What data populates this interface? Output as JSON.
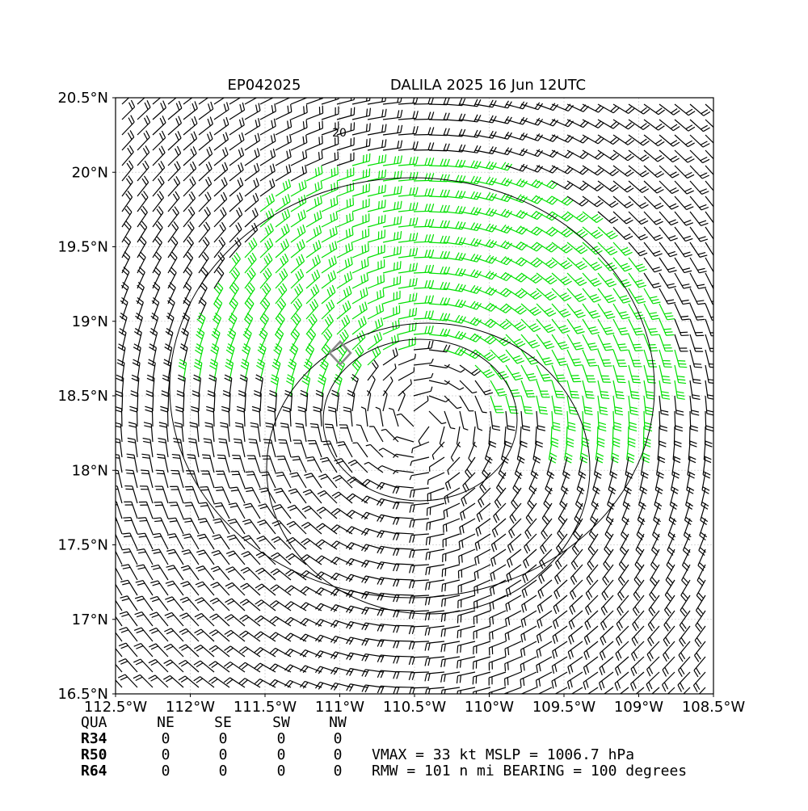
{
  "chart_data": {
    "type": "barb",
    "title": "DALILA 2025 16 Jun 12UTC",
    "subtitle": "EP042025",
    "xlim": [
      -112.5,
      -108.5
    ],
    "ylim": [
      16.5,
      20.5
    ],
    "xticks": [
      {
        "value": -112.5,
        "label": "112.5°W"
      },
      {
        "value": -112,
        "label": "112°W"
      },
      {
        "value": -111.5,
        "label": "111.5°W"
      },
      {
        "value": -111,
        "label": "111°W"
      },
      {
        "value": -110.5,
        "label": "110.5°W"
      },
      {
        "value": -110,
        "label": "110°W"
      },
      {
        "value": -109.5,
        "label": "109.5°W"
      },
      {
        "value": -109,
        "label": "109°W"
      },
      {
        "value": -108.5,
        "label": "108.5°W"
      }
    ],
    "yticks": [
      {
        "value": 16.5,
        "label": "16.5°N"
      },
      {
        "value": 17,
        "label": "17°N"
      },
      {
        "value": 17.5,
        "label": "17.5°N"
      },
      {
        "value": 18,
        "label": "18°N"
      },
      {
        "value": 18.5,
        "label": "18.5°N"
      },
      {
        "value": 19,
        "label": "19°N"
      },
      {
        "value": 19.5,
        "label": "19.5°N"
      },
      {
        "value": 20,
        "label": "20°N"
      },
      {
        "value": 20.5,
        "label": "20.5°N"
      }
    ],
    "grid": true,
    "contour_label": "20",
    "colors": {
      "below_34kt": "#000000",
      "at_or_above_34kt": "#00e000"
    }
  },
  "radii_table": {
    "header": [
      "QUA",
      "NE",
      "SE",
      "SW",
      "NW"
    ],
    "rows": [
      [
        "R34",
        0,
        0,
        0,
        0
      ],
      [
        "R50",
        0,
        0,
        0,
        0
      ],
      [
        "R64",
        0,
        0,
        0,
        0
      ]
    ]
  },
  "info": [
    "VMAX =  33 kt MSLP = 1006.7 hPa",
    "RMW = 101 n mi BEARING = 100 degrees"
  ]
}
